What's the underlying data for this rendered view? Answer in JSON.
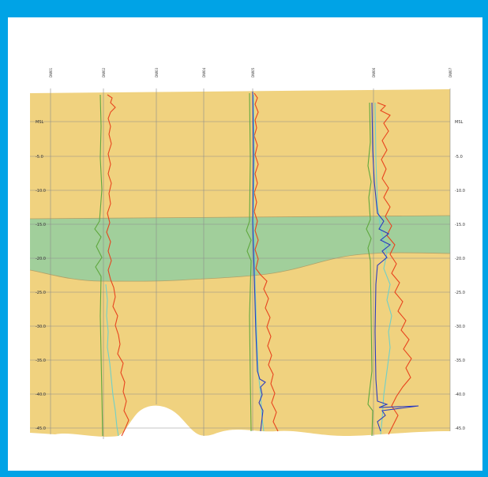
{
  "section": {
    "colors": {
      "background": "#00a3e6",
      "sand": "#f0d27f",
      "shale_band": "#93cfa0",
      "grid": "#8d8d8d",
      "log_red": "#e8441e",
      "log_green": "#5fa83e",
      "log_cyan": "#6fd0c8",
      "log_blue": "#2c3bbf"
    },
    "wells": [
      {
        "label": "DW01"
      },
      {
        "label": "DW02"
      },
      {
        "label": "DW03"
      },
      {
        "label": "DW04"
      },
      {
        "label": "DW05"
      },
      {
        "label": "DW06"
      },
      {
        "label": "DW07"
      }
    ],
    "left_axis": [
      "MSL",
      "-5.0",
      "-10.0",
      "-15.0",
      "-20.0",
      "-25.0",
      "-30.0",
      "-35.0",
      "-40.0",
      "-45.0"
    ],
    "right_axis": [
      "MSL",
      "-5.0",
      "-10.0",
      "-15.0",
      "-20.0",
      "-25.0",
      "-30.0",
      "-35.0",
      "-40.0",
      "-45.0"
    ]
  }
}
